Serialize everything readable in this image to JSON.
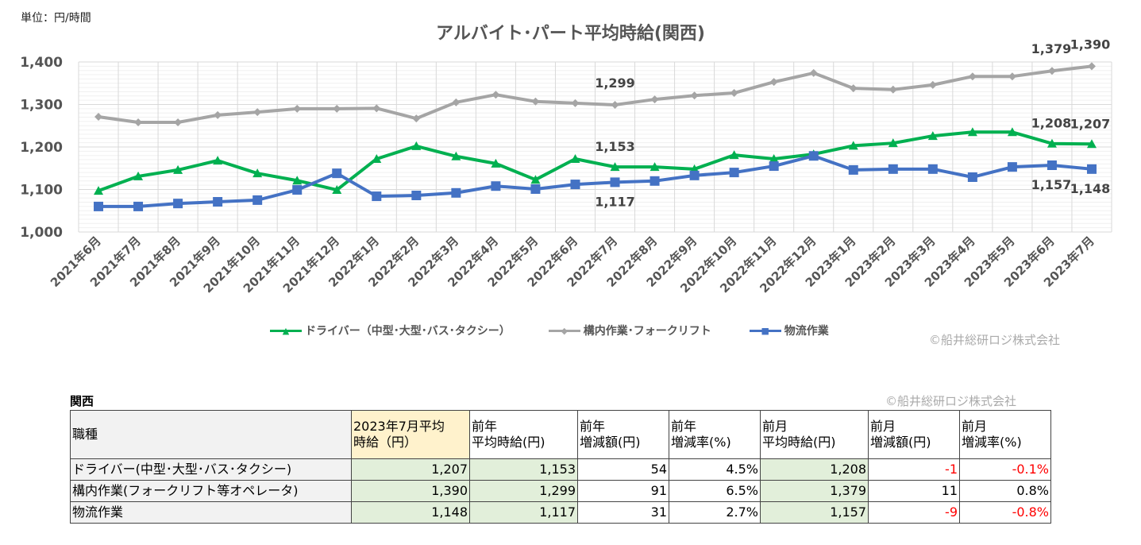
{
  "unit_label": "単位：円/時間",
  "copyright": "©船井総研ロジ株式会社",
  "chart_data": {
    "type": "line",
    "title": "アルバイト･パート平均時給(関西)",
    "ylim": [
      1000,
      1400
    ],
    "yticks": [
      "1,000",
      "1,100",
      "1,200",
      "1,300",
      "1,400"
    ],
    "grid": true,
    "legend_position": "bottom",
    "categories": [
      "2021年6月",
      "2021年7月",
      "2021年8月",
      "2021年9月",
      "2021年10月",
      "2021年11月",
      "2021年12月",
      "2022年1月",
      "2022年2月",
      "2022年3月",
      "2022年4月",
      "2022年5月",
      "2022年6月",
      "2022年7月",
      "2022年8月",
      "2022年9月",
      "2022年10月",
      "2022年11月",
      "2022年12月",
      "2023年1月",
      "2023年2月",
      "2023年3月",
      "2023年4月",
      "2023年5月",
      "2023年6月",
      "2023年7月"
    ],
    "series": [
      {
        "name": "ドライバー（中型･大型･バス･タクシー）",
        "color": "#00b050",
        "marker": "triangle",
        "values": [
          1097,
          1131,
          1146,
          1168,
          1138,
          1121,
          1099,
          1172,
          1202,
          1178,
          1161,
          1123,
          1172,
          1153,
          1153,
          1148,
          1181,
          1172,
          1183,
          1203,
          1209,
          1226,
          1235,
          1235,
          1208,
          1207
        ],
        "labels": [
          {
            "i": 13,
            "text": "1,153"
          },
          {
            "i": 24,
            "text": "1,208"
          },
          {
            "i": 25,
            "text": "1,207"
          }
        ]
      },
      {
        "name": "構内作業･フォークリフト",
        "color": "#a5a5a5",
        "marker": "diamond",
        "values": [
          1271,
          1258,
          1258,
          1275,
          1282,
          1290,
          1290,
          1291,
          1267,
          1305,
          1323,
          1307,
          1303,
          1299,
          1312,
          1321,
          1327,
          1353,
          1374,
          1338,
          1335,
          1346,
          1366,
          1366,
          1379,
          1390
        ],
        "labels": [
          {
            "i": 13,
            "text": "1,299"
          },
          {
            "i": 24,
            "text": "1,379"
          },
          {
            "i": 25,
            "text": "1,390"
          }
        ]
      },
      {
        "name": "物流作業",
        "color": "#4472c4",
        "marker": "star",
        "values": [
          1060,
          1060,
          1067,
          1071,
          1075,
          1099,
          1138,
          1084,
          1086,
          1092,
          1108,
          1101,
          1112,
          1117,
          1120,
          1133,
          1140,
          1155,
          1179,
          1146,
          1148,
          1148,
          1129,
          1153,
          1157,
          1148
        ],
        "labels": [
          {
            "i": 13,
            "text": "1,117"
          },
          {
            "i": 24,
            "text": "1,157"
          },
          {
            "i": 25,
            "text": "1,148"
          }
        ]
      }
    ]
  },
  "table": {
    "region": "関西",
    "headers": [
      "職種",
      "2023年7月平均\n時給（円）",
      "前年\n平均時給(円)",
      "前年\n増減額(円)",
      "前年\n増減率(%)",
      "前月\n平均時給(円)",
      "前月\n増減額(円)",
      "前月\n増減率(%)"
    ],
    "rows": [
      [
        "ドライバー(中型･大型･バス･タクシー)",
        "1,207",
        "1,153",
        "54",
        "4.5%",
        "1,208",
        "-1",
        "-0.1%"
      ],
      [
        "構内作業(フォークリフト等オペレータ)",
        "1,390",
        "1,299",
        "91",
        "6.5%",
        "1,379",
        "11",
        "0.8%"
      ],
      [
        "物流作業",
        "1,148",
        "1,117",
        "31",
        "2.7%",
        "1,157",
        "-9",
        "-0.8%"
      ]
    ]
  }
}
